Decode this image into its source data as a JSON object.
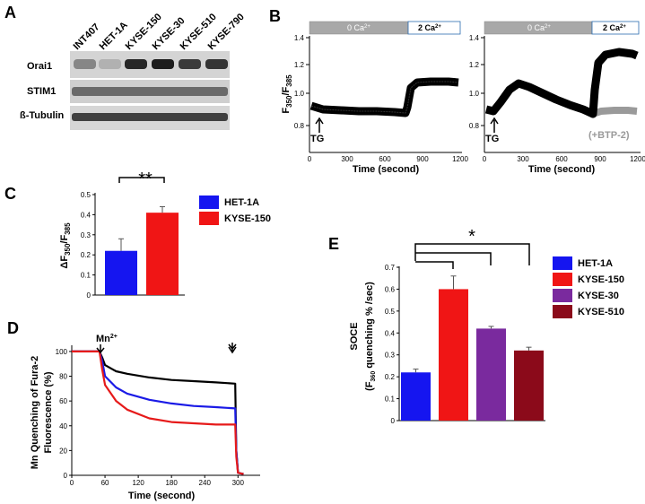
{
  "panels": {
    "A": "A",
    "B": "B",
    "C": "C",
    "D": "D",
    "E": "E"
  },
  "blot": {
    "lanes": [
      "INT407",
      "HET-1A",
      "KYSE-150",
      "KYSE-30",
      "KYSE-510",
      "KYSE-790"
    ],
    "rows": [
      "Orai1",
      "STIM1",
      "ß-Tubulin"
    ],
    "orai1_intensity": [
      0.35,
      0.12,
      0.85,
      0.9,
      0.75,
      0.78
    ]
  },
  "traceB": {
    "bar_0ca": "0 Ca",
    "bar_2ca": "2 Ca",
    "sup": "2+",
    "ylabel_main": "F",
    "ylabel_sub1": "350",
    "ylabel_sep": "/F",
    "ylabel_sub2": "385",
    "xlabel": "Time (second)",
    "tg": "TG",
    "btp": "(+BTP-2)",
    "xticks": [
      "0",
      "300",
      "600",
      "900",
      "1200"
    ],
    "yticks": [
      "0.8",
      "1.0",
      "1.2",
      "1.4"
    ]
  },
  "chart_data": [
    {
      "type": "bar",
      "panel": "C",
      "categories": [
        "HET-1A",
        "KYSE-150"
      ],
      "values": [
        0.22,
        0.41
      ],
      "errors": [
        0.06,
        0.03
      ],
      "colors": [
        "#1515f0",
        "#f01515"
      ],
      "ylim": [
        0,
        0.5
      ],
      "yticks": [
        "0",
        "0.1",
        "0.2",
        "0.3",
        "0.4",
        "0.5"
      ],
      "ylabel": "ΔF350/F385",
      "significance": "**"
    },
    {
      "type": "line",
      "panel": "D",
      "ylabel": "Mn Quenching of Fura-2 Fluorescence (%)",
      "ylabel_line1": "Mn Quenching of Fura-2",
      "ylabel_line2": "Fluorescence (%)",
      "xlabel": "Time (second)",
      "annotation": "Mn",
      "annotation_sup": "2+",
      "xlim": [
        0,
        340
      ],
      "ylim": [
        0,
        105
      ],
      "xticks": [
        "0",
        "60",
        "120",
        "180",
        "240",
        "300"
      ],
      "yticks": [
        "0",
        "20",
        "40",
        "60",
        "80",
        "100"
      ],
      "series": [
        {
          "name": "black",
          "color": "#000000",
          "x": [
            0,
            50,
            55,
            60,
            80,
            100,
            140,
            180,
            220,
            260,
            295,
            297,
            300,
            310
          ],
          "y": [
            100,
            100,
            95,
            89,
            84,
            82,
            79,
            77,
            76,
            75,
            74,
            20,
            2,
            1
          ]
        },
        {
          "name": "blue",
          "color": "#1a1ae6",
          "x": [
            0,
            50,
            55,
            60,
            80,
            100,
            140,
            180,
            220,
            260,
            295,
            297,
            300,
            310
          ],
          "y": [
            100,
            100,
            92,
            80,
            71,
            66,
            61,
            58,
            56,
            55,
            54,
            20,
            2,
            1
          ]
        },
        {
          "name": "red",
          "color": "#e61a1a",
          "x": [
            0,
            50,
            55,
            60,
            80,
            100,
            140,
            180,
            220,
            260,
            295,
            297,
            300,
            310
          ],
          "y": [
            100,
            100,
            85,
            73,
            60,
            53,
            46,
            43,
            42,
            41,
            41,
            15,
            2,
            1
          ]
        }
      ]
    },
    {
      "type": "bar",
      "panel": "E",
      "categories": [
        "HET-1A",
        "KYSE-150",
        "KYSE-30",
        "KYSE-510"
      ],
      "values": [
        0.22,
        0.6,
        0.42,
        0.32
      ],
      "errors": [
        0.015,
        0.06,
        0.01,
        0.015
      ],
      "colors": [
        "#1515f0",
        "#f01515",
        "#7a2a9e",
        "#8b0a1a"
      ],
      "ylim": [
        0,
        0.7
      ],
      "yticks": [
        "0",
        "0.1",
        "0.2",
        "0.3",
        "0.4",
        "0.5",
        "0.6",
        "0.7"
      ],
      "ylabel_line1": "SOCE",
      "ylabel_line2": "(F360 quenching % /sec)",
      "significance": "*"
    }
  ]
}
